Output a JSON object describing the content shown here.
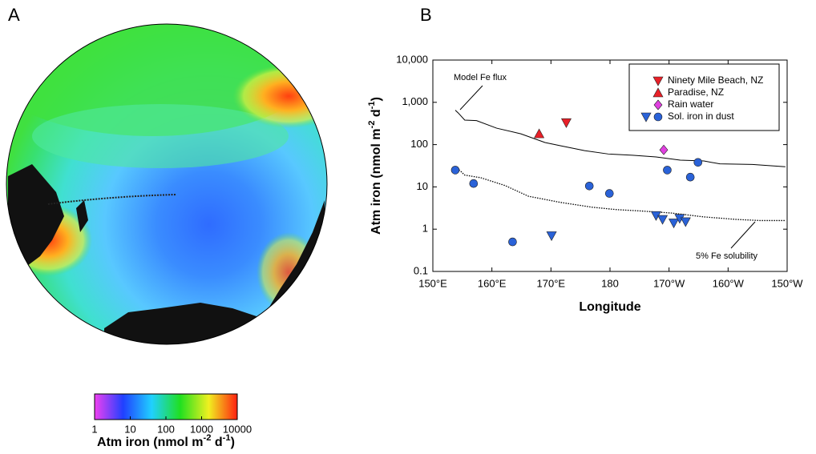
{
  "chart_data": [
    {
      "type": "map",
      "panel_label": "A",
      "colorbar": {
        "scale": "log",
        "range": [
          1,
          10000
        ],
        "ticks": [
          1,
          10,
          100,
          1000,
          10000
        ],
        "colors": [
          "#f040f0",
          "#2040ff",
          "#20d0ff",
          "#20e020",
          "#f0f020",
          "#ff2010"
        ],
        "label_parts": [
          "Atm iron (nmol m",
          "-2",
          " d",
          "-1",
          ")"
        ]
      }
    },
    {
      "type": "scatter",
      "panel_label": "B",
      "x_label": "Longitude",
      "y_label_parts": [
        "Atm iron (nmol m",
        "-2",
        " d",
        "-1",
        ")"
      ],
      "y_scale": "log",
      "xlim": [
        150,
        210
      ],
      "ylim": [
        0.1,
        10000
      ],
      "xticks": [
        {
          "value": 150,
          "label": "150°E"
        },
        {
          "value": 160,
          "label": "160°E"
        },
        {
          "value": 170,
          "label": "170°E"
        },
        180,
        {
          "value": 190,
          "label": "170°W"
        },
        {
          "value": 200,
          "label": "160°W"
        },
        {
          "value": 210,
          "label": "150°W"
        }
      ],
      "yticks": [
        0.1,
        1,
        10,
        100,
        {
          "value": 1000,
          "label": "1,000"
        },
        {
          "value": 10000,
          "label": "10,000"
        }
      ],
      "grid": false,
      "legend": "upper right",
      "series": [
        {
          "name": "Ninety Mile Beach, NZ",
          "color": "#e82028",
          "marker": "triangle-down",
          "x": [
            172.6
          ],
          "values": [
            330
          ]
        },
        {
          "name": "Paradise, NZ",
          "color": "#e82028",
          "marker": "triangle-up",
          "x": [
            168.0
          ],
          "values": [
            180
          ]
        },
        {
          "name": "Rain water",
          "color": "#e040e0",
          "marker": "diamond",
          "x": [
            189.1
          ],
          "values": [
            75
          ]
        },
        {
          "name": "Sol. iron in dust",
          "color": "#2a62d8",
          "markers": [
            "triangle-down",
            "triangle-down",
            "triangle-down",
            "triangle-down",
            "triangle-down",
            "triangle-down",
            "circle",
            "circle",
            "circle",
            "circle",
            "circle",
            "circle",
            "circle",
            "circle"
          ],
          "x": [
            170.1,
            187.8,
            188.9,
            190.8,
            191.8,
            192.8,
            153.8,
            156.9,
            163.5,
            176.5,
            179.9,
            189.7,
            193.6,
            194.9
          ],
          "values": [
            0.7,
            2.1,
            1.7,
            1.4,
            1.8,
            1.5,
            25,
            12,
            0.5,
            10.5,
            7,
            25,
            17,
            38
          ]
        }
      ],
      "lines": [
        {
          "label": "Model Fe flux",
          "style": "solid",
          "x": [
            153.8,
            154.3,
            155.4,
            157.4,
            160.8,
            164.9,
            169.0,
            171.6,
            175.7,
            179.7,
            183.8,
            187.8,
            191.9,
            195.9,
            198.6,
            204.1,
            209.7
          ],
          "values": [
            650,
            560,
            380,
            370,
            245,
            180,
            112,
            94,
            72,
            60,
            56,
            51,
            43,
            41,
            35,
            34,
            30
          ]
        },
        {
          "label": "5% Fe solubility",
          "style": "dotted",
          "x": [
            153.8,
            154.7,
            155.4,
            158.1,
            162.2,
            166.2,
            171.6,
            177.0,
            181.1,
            185.1,
            190.5,
            195.9,
            201.4,
            205.4,
            209.7
          ],
          "values": [
            30,
            23.5,
            19,
            16.5,
            10.8,
            6,
            4.3,
            3.3,
            2.9,
            2.7,
            2.4,
            1.95,
            1.7,
            1.6,
            1.6
          ]
        }
      ]
    }
  ]
}
